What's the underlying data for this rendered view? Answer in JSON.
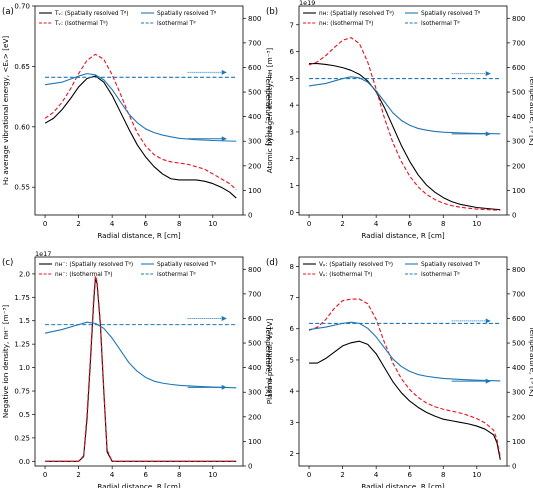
{
  "figure": {
    "colors": {
      "black": "#000000",
      "red": "#e8101c",
      "blue": "#1f77b4",
      "axis": "#000000"
    }
  },
  "chart_data": [
    {
      "id": "a",
      "type": "line",
      "panel_label": "(a)",
      "xlabel": "Radial distance, R [cm]",
      "ylabel": "H₂ average vibrational energy, <Eᵥ> [eV]",
      "y2label": "Temperature, Tᵍ [K]",
      "xlim": [
        -0.6,
        11.8
      ],
      "ylim": [
        0.527,
        0.7
      ],
      "y2lim": [
        0,
        850
      ],
      "xticks": [
        0,
        2,
        4,
        6,
        8,
        10
      ],
      "yticks": [
        0.55,
        0.6,
        0.65,
        0.7
      ],
      "y2ticks": [
        0,
        100,
        200,
        300,
        400,
        500,
        600,
        700,
        800
      ],
      "ytick_format": 2,
      "exponent_label": "",
      "legend_placement": "top",
      "legend": [
        {
          "text": "Tᵥ: (Spatially resolved Tᵍ)",
          "color": "#000000",
          "dash": "solid"
        },
        {
          "text": "Tᵥ: (Isothermal Tᵍ)",
          "color": "#e8101c",
          "dash": "dashed"
        },
        {
          "text": "Spatially resolved Tᵍ",
          "color": "#1f77b4",
          "dash": "solid"
        },
        {
          "text": "Isothermal Tᵍ",
          "color": "#1f77b4",
          "dash": "dashed"
        }
      ],
      "arrows": [
        {
          "x_from": 8.5,
          "x_to": 10.8,
          "y2": 580,
          "style": "dotted"
        },
        {
          "x_from": 8.5,
          "x_to": 10.8,
          "y2": 310,
          "style": "solid"
        }
      ],
      "series": [
        {
          "name": "Tv: (Spatially resolved Tg)",
          "axis": "left",
          "color": "#000000",
          "dash": "solid",
          "x": [
            0,
            0.5,
            1,
            1.5,
            2,
            2.5,
            3,
            3.5,
            4,
            4.5,
            5,
            5.5,
            6,
            6.5,
            7,
            7.5,
            8,
            8.5,
            9,
            9.5,
            10,
            10.5,
            11,
            11.4
          ],
          "y": [
            0.603,
            0.607,
            0.614,
            0.623,
            0.633,
            0.64,
            0.642,
            0.637,
            0.626,
            0.612,
            0.598,
            0.585,
            0.575,
            0.567,
            0.561,
            0.557,
            0.556,
            0.556,
            0.556,
            0.555,
            0.553,
            0.55,
            0.546,
            0.541
          ]
        },
        {
          "name": "Tv: (Isothermal Tg)",
          "axis": "left",
          "color": "#e8101c",
          "dash": "dashed",
          "x": [
            0,
            0.5,
            1,
            1.5,
            2,
            2.5,
            3,
            3.5,
            4,
            4.5,
            5,
            5.5,
            6,
            6.5,
            7,
            7.5,
            8,
            8.5,
            9,
            9.5,
            10,
            10.5,
            11,
            11.4
          ],
          "y": [
            0.607,
            0.612,
            0.62,
            0.631,
            0.644,
            0.655,
            0.66,
            0.656,
            0.643,
            0.627,
            0.61,
            0.595,
            0.584,
            0.577,
            0.573,
            0.571,
            0.57,
            0.569,
            0.567,
            0.565,
            0.561,
            0.557,
            0.553,
            0.548
          ]
        },
        {
          "name": "Spatially resolved Tg",
          "axis": "right",
          "color": "#1f77b4",
          "dash": "solid",
          "x": [
            0,
            1,
            2,
            2.5,
            3,
            3.5,
            4,
            4.5,
            5,
            5.5,
            6,
            6.5,
            7,
            7.5,
            8,
            9,
            10,
            11.4
          ],
          "y": [
            530,
            540,
            565,
            575,
            570,
            550,
            510,
            460,
            410,
            375,
            350,
            335,
            325,
            318,
            312,
            306,
            303,
            300
          ]
        },
        {
          "name": "Isothermal Tg",
          "axis": "right",
          "color": "#1f77b4",
          "dash": "dashed",
          "x": [
            0,
            11.4
          ],
          "y": [
            560,
            560
          ]
        }
      ]
    },
    {
      "id": "b",
      "type": "line",
      "panel_label": "(b)",
      "xlabel": "Radial distance, R [cm]",
      "ylabel": "Atomic hydrogen density, nʜ [m⁻³]",
      "y2label": "Temperature, Tᵍ [K]",
      "xlim": [
        -0.6,
        11.8
      ],
      "ylim": [
        -0.1,
        7.7
      ],
      "y2lim": [
        0,
        850
      ],
      "xticks": [
        0,
        2,
        4,
        6,
        8,
        10
      ],
      "yticks": [
        0,
        1,
        2,
        3,
        4,
        5,
        6,
        7
      ],
      "y2ticks": [
        0,
        100,
        200,
        300,
        400,
        500,
        600,
        700,
        800
      ],
      "ytick_format": 0,
      "exponent_label": "1e19",
      "legend_placement": "top",
      "legend": [
        {
          "text": "nʜ: (Spatially resolved Tᵍ)",
          "color": "#000000",
          "dash": "solid"
        },
        {
          "text": "nʜ: (Isothermal Tᵍ)",
          "color": "#e8101c",
          "dash": "dashed"
        },
        {
          "text": "Spatially resolved Tᵍ",
          "color": "#1f77b4",
          "dash": "solid"
        },
        {
          "text": "Isothermal Tᵍ",
          "color": "#1f77b4",
          "dash": "dashed"
        }
      ],
      "arrows": [
        {
          "x_from": 8.5,
          "x_to": 10.8,
          "y2": 575,
          "style": "dotted"
        },
        {
          "x_from": 8.5,
          "x_to": 10.8,
          "y2": 330,
          "style": "solid"
        }
      ],
      "series": [
        {
          "name": "nH: (Spatially resolved Tg)",
          "axis": "left",
          "color": "#000000",
          "dash": "solid",
          "x": [
            0,
            0.5,
            1,
            1.5,
            2,
            2.5,
            3,
            3.5,
            4,
            4.5,
            5,
            5.5,
            6,
            6.5,
            7,
            7.5,
            8,
            8.5,
            9,
            10,
            11,
            11.4
          ],
          "y": [
            5.55,
            5.55,
            5.52,
            5.47,
            5.4,
            5.3,
            5.15,
            4.9,
            4.5,
            3.9,
            3.2,
            2.5,
            1.9,
            1.4,
            1.02,
            0.75,
            0.55,
            0.4,
            0.3,
            0.18,
            0.12,
            0.1
          ]
        },
        {
          "name": "nH: (Isothermal Tg)",
          "axis": "left",
          "color": "#e8101c",
          "dash": "dashed",
          "x": [
            0,
            0.5,
            1,
            1.5,
            2,
            2.5,
            3,
            3.5,
            4,
            4.5,
            5,
            5.5,
            6,
            6.5,
            7,
            7.5,
            8,
            8.5,
            9,
            10,
            11,
            11.4
          ],
          "y": [
            5.5,
            5.62,
            5.85,
            6.15,
            6.42,
            6.52,
            6.3,
            5.6,
            4.6,
            3.5,
            2.6,
            1.9,
            1.35,
            0.95,
            0.67,
            0.48,
            0.34,
            0.25,
            0.19,
            0.12,
            0.09,
            0.08
          ]
        },
        {
          "name": "Spatially resolved Tg",
          "axis": "right",
          "color": "#1f77b4",
          "dash": "solid",
          "x": [
            0,
            1,
            2,
            2.5,
            3,
            3.5,
            4,
            4.5,
            5,
            5.5,
            6,
            6.5,
            7,
            7.5,
            8,
            9,
            10,
            11.4
          ],
          "y": [
            525,
            535,
            555,
            562,
            558,
            540,
            505,
            460,
            415,
            385,
            365,
            352,
            345,
            340,
            337,
            334,
            332,
            330
          ]
        },
        {
          "name": "Isothermal Tg",
          "axis": "right",
          "color": "#1f77b4",
          "dash": "dashed",
          "x": [
            0,
            11.4
          ],
          "y": [
            555,
            555
          ]
        }
      ]
    },
    {
      "id": "c",
      "type": "line",
      "panel_label": "(c)",
      "xlabel": "Radial distance, R [cm]",
      "ylabel": "Negative ion density, nʜ⁻ [m⁻³]",
      "y2label": "Temperature, Tᵍ [K]",
      "xlim": [
        -0.6,
        11.8
      ],
      "ylim": [
        -0.05,
        2.18
      ],
      "y2lim": [
        0,
        850
      ],
      "xticks": [
        0,
        2,
        4,
        6,
        8,
        10
      ],
      "yticks": [
        0.0,
        0.25,
        0.5,
        0.75,
        1.0,
        1.25,
        1.5,
        1.75,
        2.0
      ],
      "y2ticks": [
        0,
        100,
        200,
        300,
        400,
        500,
        600,
        700,
        800
      ],
      "ytick_format": "auto",
      "exponent_label": "1e17",
      "legend_placement": "top",
      "legend": [
        {
          "text": "nʜ⁻: (Spatially resolved Tᵍ)",
          "color": "#000000",
          "dash": "solid"
        },
        {
          "text": "nʜ⁻: (Isothermal Tᵍ)",
          "color": "#e8101c",
          "dash": "dashed"
        },
        {
          "text": "Spatially resolved Tᵍ",
          "color": "#1f77b4",
          "dash": "solid"
        },
        {
          "text": "Isothermal Tᵍ",
          "color": "#1f77b4",
          "dash": "dashed"
        }
      ],
      "arrows": [
        {
          "x_from": 8.5,
          "x_to": 10.8,
          "y2": 600,
          "style": "dotted"
        },
        {
          "x_from": 8.5,
          "x_to": 10.8,
          "y2": 320,
          "style": "solid"
        }
      ],
      "series": [
        {
          "name": "nH-: (Spatially resolved Tg)",
          "axis": "left",
          "color": "#000000",
          "dash": "solid",
          "x": [
            0,
            2.0,
            2.3,
            2.5,
            2.7,
            2.9,
            3.0,
            3.1,
            3.3,
            3.5,
            3.7,
            4.0,
            11.4
          ],
          "y": [
            0.0,
            0.0,
            0.05,
            0.45,
            1.05,
            1.7,
            1.95,
            1.9,
            1.45,
            0.75,
            0.1,
            0.0,
            0.0
          ]
        },
        {
          "name": "nH-: (Isothermal Tg)",
          "axis": "left",
          "color": "#e8101c",
          "dash": "dashed",
          "x": [
            0,
            2.0,
            2.3,
            2.5,
            2.7,
            2.9,
            3.0,
            3.1,
            3.3,
            3.5,
            3.7,
            4.0,
            11.4
          ],
          "y": [
            0.0,
            0.0,
            0.06,
            0.5,
            1.1,
            1.75,
            1.98,
            1.92,
            1.48,
            0.78,
            0.12,
            0.0,
            0.0
          ]
        },
        {
          "name": "Spatially resolved Tg",
          "axis": "right",
          "color": "#1f77b4",
          "dash": "solid",
          "x": [
            0,
            1,
            2,
            2.5,
            3,
            3.5,
            4,
            4.5,
            5,
            5.5,
            6,
            6.5,
            7,
            7.5,
            8,
            9,
            10,
            11.4
          ],
          "y": [
            540,
            555,
            575,
            585,
            580,
            560,
            520,
            470,
            420,
            385,
            360,
            345,
            337,
            332,
            328,
            324,
            321,
            318
          ]
        },
        {
          "name": "Isothermal Tg",
          "axis": "right",
          "color": "#1f77b4",
          "dash": "dashed",
          "x": [
            0,
            11.4
          ],
          "y": [
            575,
            575
          ]
        }
      ]
    },
    {
      "id": "d",
      "type": "line",
      "panel_label": "(d)",
      "xlabel": "Radial distance, R [cm]",
      "ylabel": "Plasma potential, Vₚ [V]",
      "y2label": "Temperature, Tᵍ [K]",
      "xlim": [
        -0.6,
        11.8
      ],
      "ylim": [
        1.6,
        8.3
      ],
      "y2lim": [
        0,
        850
      ],
      "xticks": [
        0,
        2,
        4,
        6,
        8,
        10
      ],
      "yticks": [
        2,
        3,
        4,
        5,
        6,
        7,
        8
      ],
      "y2ticks": [
        0,
        100,
        200,
        300,
        400,
        500,
        600,
        700,
        800
      ],
      "ytick_format": 0,
      "exponent_label": "",
      "legend_placement": "top",
      "legend": [
        {
          "text": "Vₚ: (Spatially resolved Tᵍ)",
          "color": "#000000",
          "dash": "solid"
        },
        {
          "text": "Vₚ: (Isothermal Tᵍ)",
          "color": "#e8101c",
          "dash": "dashed"
        },
        {
          "text": "Spatially resolved Tᵍ",
          "color": "#1f77b4",
          "dash": "solid"
        },
        {
          "text": "Isothermal Tᵍ",
          "color": "#1f77b4",
          "dash": "dashed"
        }
      ],
      "arrows": [
        {
          "x_from": 8.5,
          "x_to": 10.8,
          "y2": 590,
          "style": "dotted"
        },
        {
          "x_from": 8.5,
          "x_to": 10.8,
          "y2": 345,
          "style": "solid"
        }
      ],
      "series": [
        {
          "name": "Vp: (Spatially resolved Tg)",
          "axis": "left",
          "color": "#000000",
          "dash": "solid",
          "x": [
            0,
            0.5,
            1,
            1.5,
            2,
            2.5,
            3,
            3.5,
            4,
            4.5,
            5,
            5.5,
            6,
            6.5,
            7,
            7.5,
            8,
            8.5,
            9,
            9.5,
            10,
            10.5,
            11,
            11.2,
            11.4
          ],
          "y": [
            4.9,
            4.9,
            5.05,
            5.25,
            5.45,
            5.55,
            5.6,
            5.5,
            5.2,
            4.75,
            4.3,
            3.95,
            3.68,
            3.48,
            3.32,
            3.2,
            3.1,
            3.05,
            3.0,
            2.95,
            2.88,
            2.78,
            2.6,
            2.35,
            1.8
          ]
        },
        {
          "name": "Vp: (Isothermal Tg)",
          "axis": "left",
          "color": "#e8101c",
          "dash": "dashed",
          "x": [
            0,
            0.5,
            1,
            1.5,
            2,
            2.5,
            3,
            3.5,
            4,
            4.5,
            5,
            5.5,
            6,
            6.5,
            7,
            7.5,
            8,
            8.5,
            9,
            9.5,
            10,
            10.5,
            11,
            11.2,
            11.4
          ],
          "y": [
            5.95,
            6.05,
            6.3,
            6.65,
            6.9,
            6.95,
            6.95,
            6.8,
            6.3,
            5.55,
            4.9,
            4.4,
            4.05,
            3.8,
            3.62,
            3.5,
            3.42,
            3.36,
            3.3,
            3.22,
            3.12,
            2.98,
            2.75,
            2.45,
            1.9
          ]
        },
        {
          "name": "Spatially resolved Tg",
          "axis": "right",
          "color": "#1f77b4",
          "dash": "solid",
          "x": [
            0,
            1,
            2,
            2.5,
            3,
            3.5,
            4,
            4.5,
            5,
            5.5,
            6,
            6.5,
            7,
            7.5,
            8,
            9,
            10,
            11.4
          ],
          "y": [
            555,
            565,
            580,
            585,
            580,
            560,
            525,
            480,
            435,
            405,
            385,
            372,
            365,
            360,
            356,
            352,
            349,
            346
          ]
        },
        {
          "name": "Isothermal Tg",
          "axis": "right",
          "color": "#1f77b4",
          "dash": "dashed",
          "x": [
            0,
            11.4
          ],
          "y": [
            580,
            580
          ]
        }
      ]
    }
  ]
}
